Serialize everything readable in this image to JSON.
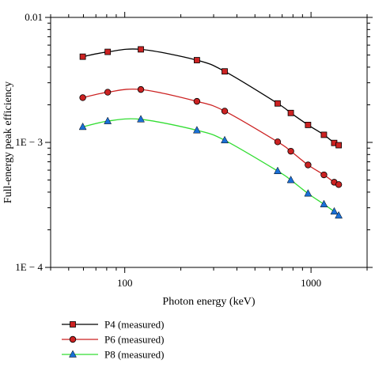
{
  "chart_data": {
    "type": "line",
    "xlabel": "Photon energy (keV)",
    "ylabel": "Full-energy peak efficiency",
    "x_scale": "log",
    "y_scale": "log",
    "xlim": [
      40,
      2000
    ],
    "ylim": [
      0.0001,
      0.01
    ],
    "x_ticks": [
      {
        "value": 100,
        "label": "100"
      },
      {
        "value": 1000,
        "label": "1000"
      }
    ],
    "y_ticks": [
      {
        "value": 0.01,
        "label": "0.01"
      },
      {
        "value": 0.001,
        "label": "1E − 3"
      },
      {
        "value": 0.0001,
        "label": "1E − 4"
      }
    ],
    "legend_position": "below",
    "series": [
      {
        "name": "P4 (measured)",
        "color": "#000000",
        "marker": "square",
        "marker_color": "#cc2222",
        "x": [
          59.5,
          81,
          122,
          244,
          344,
          662,
          779,
          964,
          1173,
          1332,
          1408
        ],
        "y": [
          0.00485,
          0.0053,
          0.00555,
          0.00455,
          0.0037,
          0.00205,
          0.00172,
          0.00138,
          0.00115,
          0.00099,
          0.00095
        ]
      },
      {
        "name": "P6 (measured)",
        "color": "#cc2222",
        "marker": "circle",
        "marker_color": "#cc2222",
        "x": [
          59.5,
          81,
          122,
          244,
          344,
          662,
          779,
          964,
          1173,
          1332,
          1408
        ],
        "y": [
          0.00228,
          0.00252,
          0.00265,
          0.00213,
          0.00178,
          0.00101,
          0.00085,
          0.00066,
          0.00055,
          0.00048,
          0.00046
        ]
      },
      {
        "name": "P8 (measured)",
        "color": "#33dd33",
        "marker": "triangle",
        "marker_color": "#1a6fd6",
        "x": [
          59.5,
          81,
          122,
          244,
          344,
          662,
          779,
          964,
          1173,
          1332,
          1408
        ],
        "y": [
          0.00133,
          0.00148,
          0.00153,
          0.00125,
          0.00104,
          0.00059,
          0.0005,
          0.00039,
          0.00032,
          0.00028,
          0.00026
        ]
      }
    ]
  }
}
